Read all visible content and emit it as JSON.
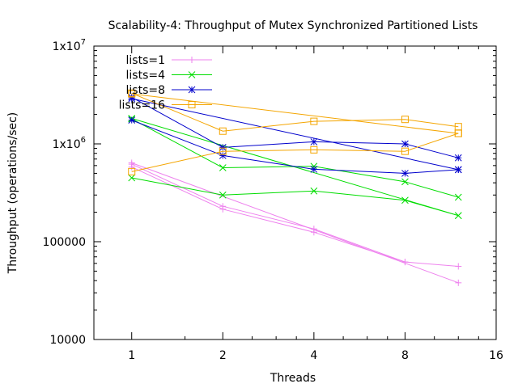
{
  "chart_data": {
    "type": "line",
    "title": "Scalability-4: Throughput of Mutex Synchronized Partitioned Lists",
    "xlabel": "Threads",
    "ylabel": "Throughput (operations/sec)",
    "x_scale": "log2",
    "y_scale": "log10",
    "xlim": [
      0.75,
      16
    ],
    "ylim": [
      10000,
      10000000
    ],
    "xticks": [
      {
        "value": 1,
        "label": "1"
      },
      {
        "value": 2,
        "label": "2"
      },
      {
        "value": 4,
        "label": "4"
      },
      {
        "value": 8,
        "label": "8"
      },
      {
        "value": 16,
        "label": "16"
      }
    ],
    "yticks": [
      {
        "value": 10000,
        "label": "10000"
      },
      {
        "value": 100000,
        "label": "100000"
      },
      {
        "value": 1000000,
        "label": "1x10",
        "exp": "6"
      },
      {
        "value": 10000000,
        "label": "1x10",
        "exp": "7"
      }
    ],
    "grid": false,
    "legend_position": "top-left",
    "series": [
      {
        "name": "lists=1",
        "color": "#ee82ee",
        "marker": "plus",
        "lines": [
          [
            [
              1,
              620000
            ],
            [
              2,
              230000
            ],
            [
              4,
              135000
            ],
            [
              8,
              62000
            ],
            [
              12,
              56000
            ]
          ],
          [
            [
              1,
              580000
            ],
            [
              2,
              215000
            ],
            [
              4,
              125000
            ],
            [
              8,
              62000
            ]
          ],
          [
            [
              1,
              640000
            ],
            [
              12,
              38000
            ]
          ]
        ]
      },
      {
        "name": "lists=4",
        "color": "#00dd00",
        "marker": "cross",
        "lines": [
          [
            [
              1,
              1800000
            ],
            [
              2,
              570000
            ],
            [
              4,
              590000
            ],
            [
              8,
              410000
            ],
            [
              12,
              285000
            ]
          ],
          [
            [
              1,
              450000
            ],
            [
              2,
              300000
            ],
            [
              4,
              330000
            ],
            [
              8,
              265000
            ],
            [
              12,
              185000
            ]
          ],
          [
            [
              1,
              1820000
            ],
            [
              12,
              185000
            ]
          ]
        ]
      },
      {
        "name": "lists=8",
        "color": "#0000cc",
        "marker": "star",
        "lines": [
          [
            [
              1,
              3000000
            ],
            [
              2,
              920000
            ],
            [
              4,
              1050000
            ],
            [
              8,
              1000000
            ],
            [
              12,
              720000
            ]
          ],
          [
            [
              1,
              1750000
            ],
            [
              2,
              760000
            ],
            [
              4,
              550000
            ],
            [
              8,
              500000
            ],
            [
              12,
              545000
            ]
          ],
          [
            [
              1,
              2900000
            ],
            [
              12,
              545000
            ]
          ]
        ]
      },
      {
        "name": "lists=16",
        "color": "#f4a500",
        "marker": "square",
        "lines": [
          [
            [
              1,
              3300000
            ],
            [
              2,
              1350000
            ],
            [
              4,
              1700000
            ],
            [
              8,
              1780000
            ],
            [
              12,
              1500000
            ]
          ],
          [
            [
              1,
              520000
            ],
            [
              2,
              840000
            ],
            [
              4,
              870000
            ],
            [
              8,
              840000
            ],
            [
              12,
              1280000
            ]
          ],
          [
            [
              1,
              3250000
            ],
            [
              12,
              1280000
            ]
          ]
        ]
      }
    ]
  }
}
